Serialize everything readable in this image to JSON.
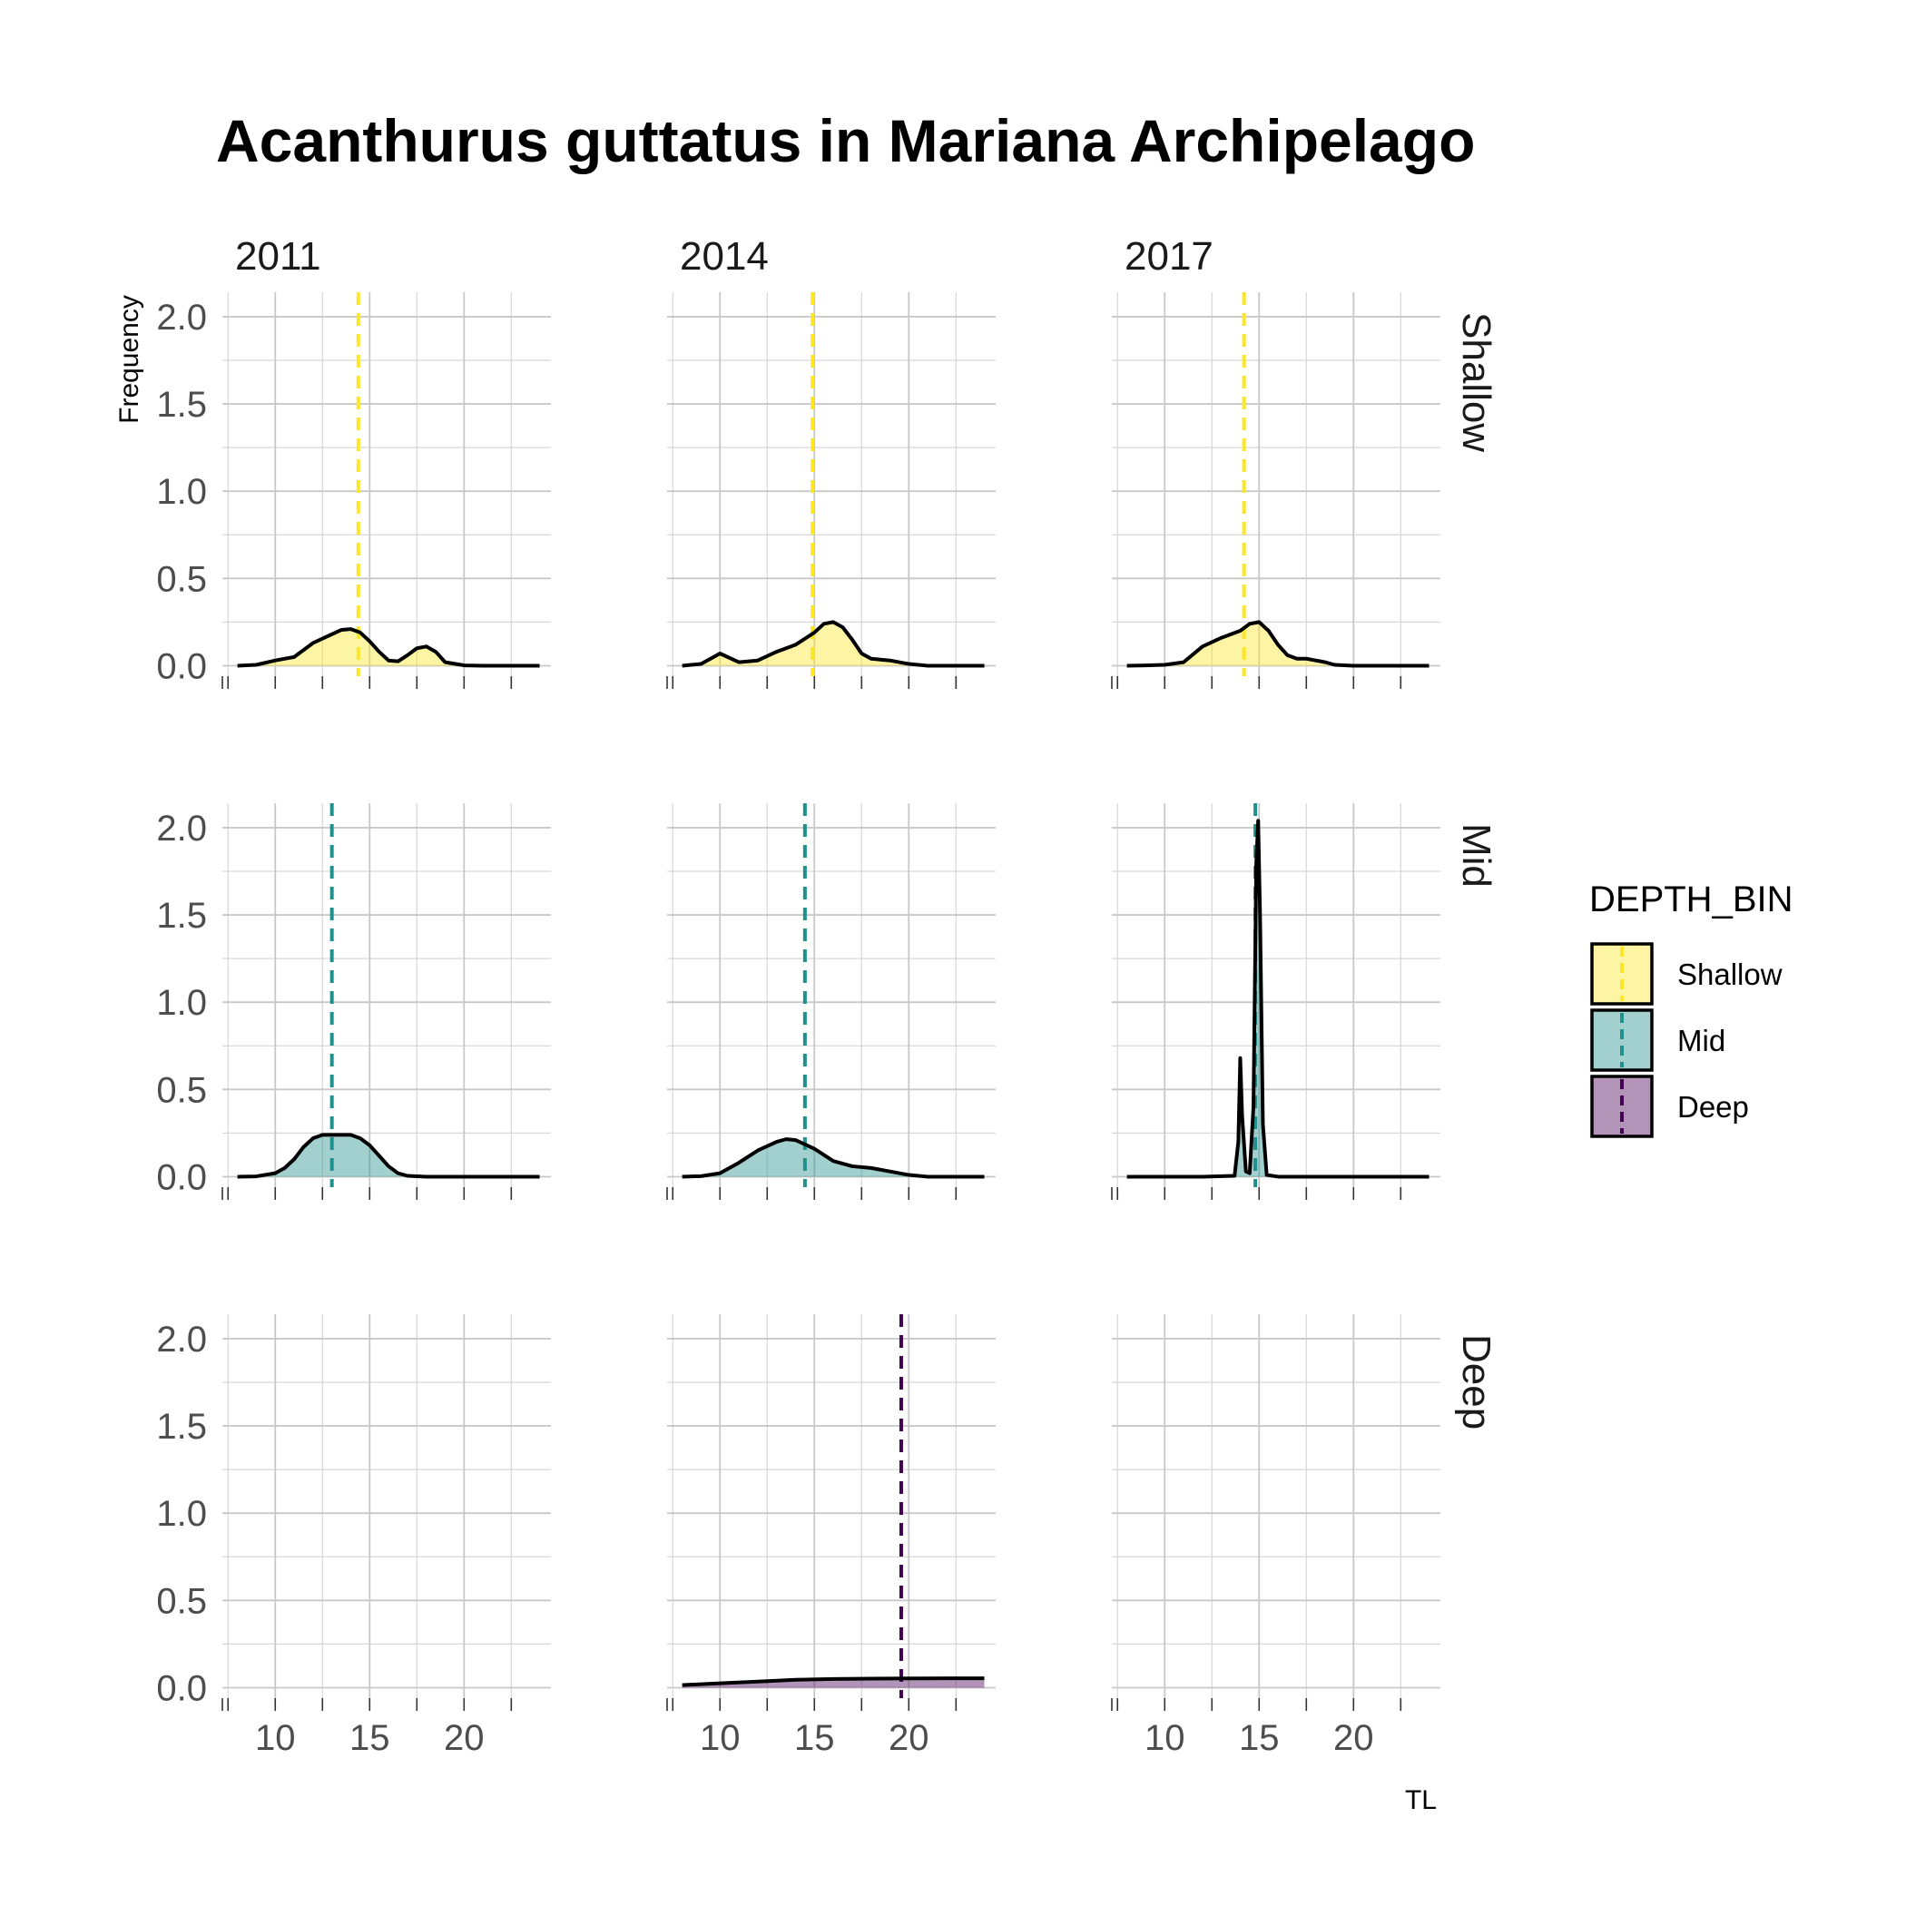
{
  "chart_data": {
    "type": "density",
    "title": "Acanthurus guttatus in Mariana Archipelago",
    "xlabel": "TL",
    "ylabel": "Frequency",
    "xlim": [
      7.2,
      24.6
    ],
    "ylim": [
      -0.06,
      2.14
    ],
    "x_ticks": [
      10,
      15,
      20
    ],
    "x_tick_labels": [
      "10",
      "15",
      "20"
    ],
    "y_ticks": [
      0,
      0.5,
      1,
      1.5,
      2
    ],
    "y_tick_labels": [
      "0.0",
      "0.5",
      "1.0",
      "1.5",
      "2.0"
    ],
    "grid": true,
    "facet_cols": [
      "2011",
      "2014",
      "2017"
    ],
    "facet_rows": [
      "Shallow",
      "Mid",
      "Deep"
    ],
    "legend": {
      "title": "DEPTH_BIN",
      "position": "right",
      "entries": [
        {
          "label": "Shallow",
          "fill": "#FDE725",
          "line": "#FDE725"
        },
        {
          "label": "Mid",
          "fill": "#21908C",
          "line": "#21908C"
        },
        {
          "label": "Deep",
          "fill": "#440154",
          "line": "#440154"
        }
      ]
    },
    "panels": [
      {
        "row": "Shallow",
        "col": "2011",
        "mean": 14.4,
        "x": [
          8,
          9,
          10,
          11,
          12,
          13,
          13.5,
          14,
          14.5,
          15,
          15.5,
          16,
          16.5,
          17,
          17.5,
          18,
          18.5,
          19,
          20,
          21,
          22,
          23,
          24
        ],
        "y": [
          0,
          0.005,
          0.03,
          0.05,
          0.13,
          0.18,
          0.205,
          0.21,
          0.19,
          0.14,
          0.08,
          0.03,
          0.025,
          0.06,
          0.1,
          0.11,
          0.08,
          0.02,
          0.002,
          0,
          0,
          0,
          0
        ]
      },
      {
        "row": "Shallow",
        "col": "2014",
        "mean": 14.9,
        "x": [
          8,
          9,
          10,
          11,
          12,
          13,
          14,
          15,
          15.5,
          16,
          16.5,
          17,
          17.5,
          18,
          19,
          20,
          21,
          22,
          23,
          24
        ],
        "y": [
          0,
          0.01,
          0.07,
          0.02,
          0.03,
          0.08,
          0.12,
          0.19,
          0.24,
          0.25,
          0.22,
          0.15,
          0.07,
          0.04,
          0.03,
          0.01,
          0,
          0,
          0,
          0
        ]
      },
      {
        "row": "Shallow",
        "col": "2017",
        "mean": 14.2,
        "x": [
          8,
          9,
          10,
          11,
          12,
          13,
          14,
          14.5,
          15,
          15.5,
          16,
          16.5,
          17,
          17.5,
          18,
          18.5,
          19,
          20,
          21,
          22,
          23,
          24
        ],
        "y": [
          0,
          0.002,
          0.005,
          0.02,
          0.11,
          0.16,
          0.2,
          0.24,
          0.25,
          0.2,
          0.12,
          0.06,
          0.04,
          0.04,
          0.03,
          0.02,
          0.005,
          0,
          0,
          0,
          0,
          0
        ]
      },
      {
        "row": "Mid",
        "col": "2011",
        "mean": 13.0,
        "x": [
          8,
          9,
          10,
          10.5,
          11,
          11.5,
          12,
          12.5,
          13,
          13.5,
          14,
          14.5,
          15,
          15.5,
          16,
          16.5,
          17,
          18,
          20,
          22,
          24
        ],
        "y": [
          0,
          0.002,
          0.02,
          0.05,
          0.1,
          0.17,
          0.22,
          0.24,
          0.24,
          0.24,
          0.24,
          0.22,
          0.18,
          0.12,
          0.06,
          0.02,
          0.005,
          0,
          0,
          0,
          0
        ]
      },
      {
        "row": "Mid",
        "col": "2014",
        "mean": 14.5,
        "x": [
          8,
          9,
          10,
          11,
          12,
          13,
          13.5,
          14,
          15,
          16,
          17,
          18,
          19,
          20,
          21,
          22,
          23,
          24
        ],
        "y": [
          0,
          0.003,
          0.02,
          0.08,
          0.15,
          0.2,
          0.215,
          0.21,
          0.16,
          0.09,
          0.06,
          0.05,
          0.03,
          0.01,
          0,
          0,
          0,
          0
        ]
      },
      {
        "row": "Mid",
        "col": "2017",
        "mean": 14.8,
        "x": [
          8,
          12,
          13.7,
          13.9,
          14.0,
          14.1,
          14.3,
          14.5,
          14.7,
          14.85,
          14.95,
          15.05,
          15.2,
          15.4,
          16,
          20,
          24
        ],
        "y": [
          0,
          0,
          0.005,
          0.2,
          0.68,
          0.35,
          0.03,
          0.02,
          0.4,
          1.8,
          2.04,
          1.5,
          0.3,
          0.01,
          0,
          0,
          0
        ]
      },
      {
        "row": "Deep",
        "col": "2011",
        "mean": null,
        "x": [],
        "y": []
      },
      {
        "row": "Deep",
        "col": "2014",
        "mean": 19.6,
        "x": [
          8,
          10,
          12,
          14,
          16,
          18,
          20,
          22,
          24
        ],
        "y": [
          0.015,
          0.025,
          0.035,
          0.045,
          0.05,
          0.052,
          0.053,
          0.054,
          0.054
        ]
      },
      {
        "row": "Deep",
        "col": "2017",
        "mean": null,
        "x": [],
        "y": []
      }
    ]
  }
}
